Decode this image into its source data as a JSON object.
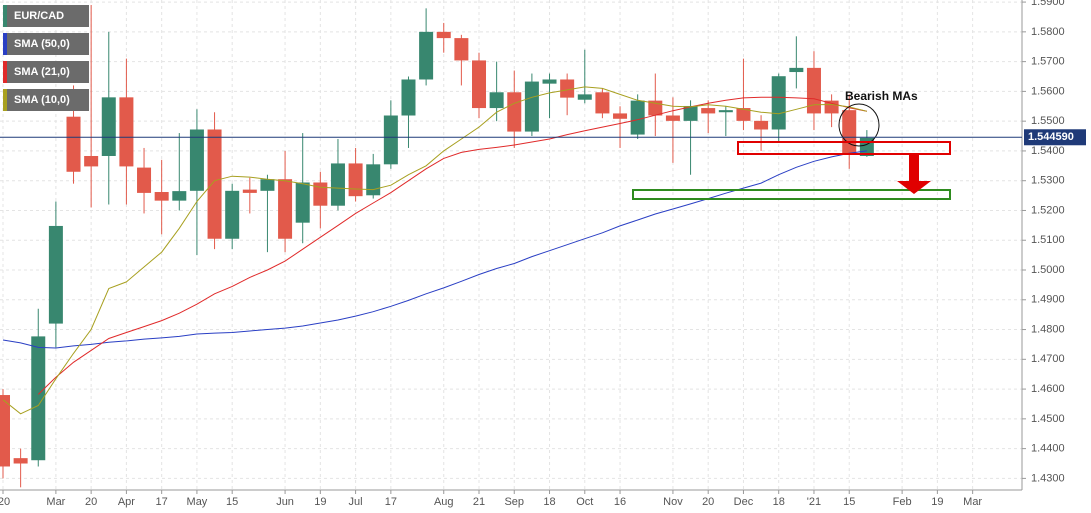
{
  "chart_data": {
    "type": "candlestick",
    "symbol": "EUR/CAD",
    "up_color": "#38876f",
    "down_color": "#e25a4b",
    "open": [
      1.458,
      1.4368,
      1.4361,
      1.482,
      1.5515,
      1.5383,
      1.5383,
      1.558,
      1.5344,
      1.5262,
      1.5233,
      1.5266,
      1.5472,
      1.5105,
      1.527,
      1.5266,
      1.5305,
      1.5159,
      1.5294,
      1.5216,
      1.5358,
      1.5251,
      1.5355,
      1.5519,
      1.564,
      1.58,
      1.5779,
      1.5704,
      1.5544,
      1.5597,
      1.5465,
      1.5626,
      1.564,
      1.5572,
      1.5597,
      1.5526,
      1.5455,
      1.5569,
      1.5519,
      1.5501,
      1.5544,
      1.553,
      1.5544,
      1.5501,
      1.5472,
      1.5665,
      1.5679,
      1.5569,
      1.5537,
      1.5383
    ],
    "high": [
      1.46,
      1.44,
      1.487,
      1.523,
      1.562,
      1.589,
      1.58,
      1.571,
      1.541,
      1.537,
      1.546,
      1.554,
      1.553,
      1.529,
      1.531,
      1.532,
      1.54,
      1.546,
      1.533,
      1.544,
      1.541,
      1.539,
      1.557,
      1.565,
      1.5879,
      1.583,
      1.579,
      1.573,
      1.57,
      1.567,
      1.566,
      1.566,
      1.566,
      1.574,
      1.561,
      1.555,
      1.559,
      1.566,
      1.558,
      1.557,
      1.557,
      1.555,
      1.571,
      1.552,
      1.566,
      1.5785,
      1.5735,
      1.559,
      1.559,
      1.547
    ],
    "low": [
      1.43,
      1.427,
      1.434,
      1.474,
      1.529,
      1.521,
      1.522,
      1.522,
      1.519,
      1.512,
      1.52,
      1.505,
      1.507,
      1.507,
      1.519,
      1.506,
      1.506,
      1.509,
      1.514,
      1.52,
      1.523,
      1.524,
      1.534,
      1.541,
      1.562,
      1.573,
      1.562,
      1.551,
      1.55,
      1.541,
      1.545,
      1.551,
      1.552,
      1.556,
      1.551,
      1.541,
      1.544,
      1.545,
      1.536,
      1.532,
      1.546,
      1.545,
      1.547,
      1.54,
      1.543,
      1.561,
      1.547,
      1.548,
      1.534,
      1.538
    ],
    "close": [
      1.434,
      1.435,
      1.4777,
      1.5148,
      1.533,
      1.5348,
      1.558,
      1.5348,
      1.5259,
      1.5233,
      1.5265,
      1.5472,
      1.5105,
      1.5266,
      1.5259,
      1.5305,
      1.5105,
      1.5294,
      1.5216,
      1.5358,
      1.5248,
      1.5355,
      1.5519,
      1.564,
      1.58,
      1.5779,
      1.5704,
      1.5544,
      1.5597,
      1.5465,
      1.5633,
      1.564,
      1.5579,
      1.559,
      1.5526,
      1.5508,
      1.5569,
      1.5519,
      1.5501,
      1.5551,
      1.5526,
      1.5537,
      1.5501,
      1.5472,
      1.5651,
      1.5679,
      1.5526,
      1.5526,
      1.539,
      1.5444
    ],
    "series": [
      {
        "name": "SMA (50,0)",
        "color": "#2a3fc4",
        "values": [
          1.4765,
          1.4755,
          1.474,
          1.4738,
          1.4745,
          1.475,
          1.4757,
          1.4762,
          1.4768,
          1.4772,
          1.4777,
          1.4785,
          1.4788,
          1.479,
          1.4795,
          1.48,
          1.4805,
          1.4812,
          1.4822,
          1.4832,
          1.4845,
          1.486,
          1.4878,
          1.4898,
          1.492,
          1.494,
          1.4962,
          1.4985,
          1.5005,
          1.5022,
          1.5045,
          1.5065,
          1.5085,
          1.5105,
          1.5125,
          1.5148,
          1.5168,
          1.5188,
          1.5205,
          1.5222,
          1.524,
          1.5258,
          1.5275,
          1.5292,
          1.532,
          1.5345,
          1.5365,
          1.538,
          1.5392,
          1.54
        ]
      },
      {
        "name": "SMA (21,0)",
        "color": "#e02a2a",
        "values": [
          null,
          null,
          1.4582,
          1.464,
          1.469,
          1.473,
          1.477,
          1.479,
          1.481,
          1.483,
          1.4855,
          1.4885,
          1.492,
          1.4945,
          1.4975,
          1.5,
          1.503,
          1.507,
          1.511,
          1.515,
          1.519,
          1.5225,
          1.526,
          1.53,
          1.534,
          1.5375,
          1.5395,
          1.5405,
          1.5412,
          1.542,
          1.543,
          1.544,
          1.5455,
          1.5468,
          1.548,
          1.5492,
          1.5505,
          1.552,
          1.5535,
          1.5548,
          1.556,
          1.557,
          1.5578,
          1.558,
          1.558,
          1.5578,
          1.5575,
          1.556,
          1.5545,
          1.5533
        ]
      },
      {
        "name": "SMA (10,0)",
        "color": "#a8a020",
        "values": [
          1.4564,
          1.4517,
          1.4545,
          1.4635,
          1.472,
          1.48,
          1.4938,
          1.496,
          1.501,
          1.506,
          1.514,
          1.523,
          1.53,
          1.5315,
          1.5312,
          1.5305,
          1.53,
          1.529,
          1.5278,
          1.5275,
          1.5272,
          1.527,
          1.5285,
          1.532,
          1.535,
          1.54,
          1.544,
          1.548,
          1.553,
          1.556,
          1.558,
          1.5595,
          1.5605,
          1.5615,
          1.561,
          1.559,
          1.557,
          1.556,
          1.555,
          1.5548,
          1.5555,
          1.555,
          1.554,
          1.553,
          1.5525,
          1.554,
          1.5555,
          1.5556,
          1.5548,
          1.5533
        ]
      }
    ],
    "last_price": {
      "value": 1.54459,
      "label": "1.544590"
    },
    "annotation": "Bearish MAs",
    "ylim": [
      1.4261,
      1.5907
    ],
    "yticks": [
      {
        "value": 1.43,
        "label": "1.4300"
      },
      {
        "value": 1.44,
        "label": "1.4400"
      },
      {
        "value": 1.45,
        "label": "1.4500"
      },
      {
        "value": 1.46,
        "label": "1.4600"
      },
      {
        "value": 1.47,
        "label": "1.4700"
      },
      {
        "value": 1.48,
        "label": "1.4800"
      },
      {
        "value": 1.49,
        "label": "1.4900"
      },
      {
        "value": 1.5,
        "label": "1.5000"
      },
      {
        "value": 1.51,
        "label": "1.5100"
      },
      {
        "value": 1.52,
        "label": "1.5200"
      },
      {
        "value": 1.53,
        "label": "1.5300"
      },
      {
        "value": 1.54,
        "label": "1.5400"
      },
      {
        "value": 1.55,
        "label": "1.5500"
      },
      {
        "value": 1.56,
        "label": "1.5600"
      },
      {
        "value": 1.57,
        "label": "1.5700"
      },
      {
        "value": 1.58,
        "label": "1.5800"
      },
      {
        "value": 1.59,
        "label": "1.5900"
      }
    ],
    "xlim": [
      -0.17,
      57.8
    ],
    "xticks": [
      {
        "value": 0,
        "label": "'20"
      },
      {
        "value": 3,
        "label": "Mar"
      },
      {
        "value": 5,
        "label": "20"
      },
      {
        "value": 7,
        "label": "Apr"
      },
      {
        "value": 9,
        "label": "17"
      },
      {
        "value": 11,
        "label": "May"
      },
      {
        "value": 13,
        "label": "15"
      },
      {
        "value": 16,
        "label": "Jun"
      },
      {
        "value": 18,
        "label": "19"
      },
      {
        "value": 20,
        "label": "Jul"
      },
      {
        "value": 22,
        "label": "17"
      },
      {
        "value": 25,
        "label": "Aug"
      },
      {
        "value": 27,
        "label": "21"
      },
      {
        "value": 29,
        "label": "Sep"
      },
      {
        "value": 31,
        "label": "18"
      },
      {
        "value": 33,
        "label": "Oct"
      },
      {
        "value": 35,
        "label": "16"
      },
      {
        "value": 38,
        "label": "Nov"
      },
      {
        "value": 40,
        "label": "20"
      },
      {
        "value": 42,
        "label": "Dec"
      },
      {
        "value": 44,
        "label": "18"
      },
      {
        "value": 46,
        "label": "'21"
      },
      {
        "value": 48,
        "label": "15"
      },
      {
        "value": 51,
        "label": "Feb"
      },
      {
        "value": 53,
        "label": "19"
      },
      {
        "value": 55,
        "label": "Mar"
      }
    ],
    "grid": true
  }
}
